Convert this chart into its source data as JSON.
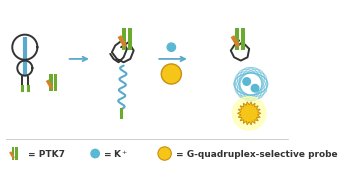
{
  "bg_color": "#ffffff",
  "arrow_color": "#5aaacc",
  "aptamer_color": "#333333",
  "stem_color": "#6aab2e",
  "ptk7_diag_color": "#d4822a",
  "kplus_color": "#5bb8d4",
  "probe_color": "#f5c518",
  "probe_outline": "#c89010",
  "gquad_color": "#5bb8d4",
  "glow_color": "#ffffaa",
  "legend_text_color": "#333333",
  "legend_fontsize": 6.5,
  "figure_width": 3.47,
  "figure_height": 1.89,
  "dpi": 100
}
